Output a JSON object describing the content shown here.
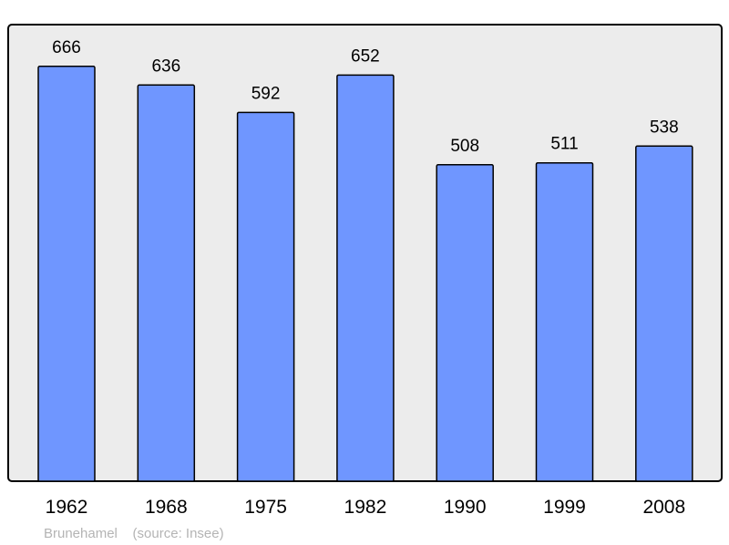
{
  "chart_data": {
    "type": "bar",
    "categories": [
      "1962",
      "1968",
      "1975",
      "1982",
      "1990",
      "1999",
      "2008"
    ],
    "values": [
      666,
      636,
      592,
      652,
      508,
      511,
      538
    ],
    "ylim": [
      0,
      733
    ],
    "grid": false,
    "data_labels": true,
    "caption": "Brunehamel    (source: Insee)",
    "colors": {
      "bar": "#6f96ff",
      "bar_stroke": "#000000",
      "plot_bg": "#ececec",
      "frame": "#000000",
      "caption": "#b4b4b4"
    }
  }
}
